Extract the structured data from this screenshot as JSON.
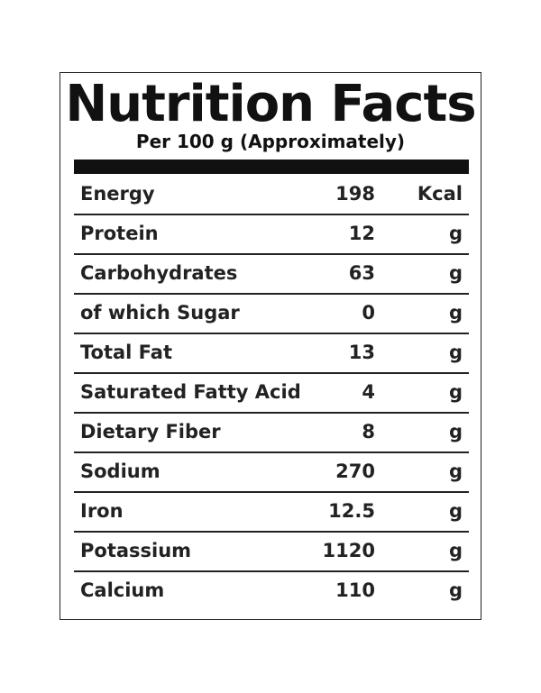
{
  "header": {
    "title": "Nutrition Facts",
    "subtitle": "Per 100 g (Approximately)"
  },
  "table": {
    "rows": [
      [
        "Energy",
        198,
        "Kcal"
      ],
      [
        "Protein",
        12,
        "g"
      ],
      [
        "Carbohydrates",
        63,
        "g"
      ],
      [
        "of which Sugar",
        0,
        "g"
      ],
      [
        "Total Fat",
        13,
        "g"
      ],
      [
        "Saturated Fatty Acid",
        4,
        "g"
      ],
      [
        "Dietary Fiber",
        8,
        "g"
      ],
      [
        "Sodium",
        270,
        "g"
      ],
      [
        "Iron",
        12.5,
        "g"
      ],
      [
        "Potassium",
        1120,
        "g"
      ],
      [
        "Calcium",
        110,
        "g"
      ]
    ]
  }
}
